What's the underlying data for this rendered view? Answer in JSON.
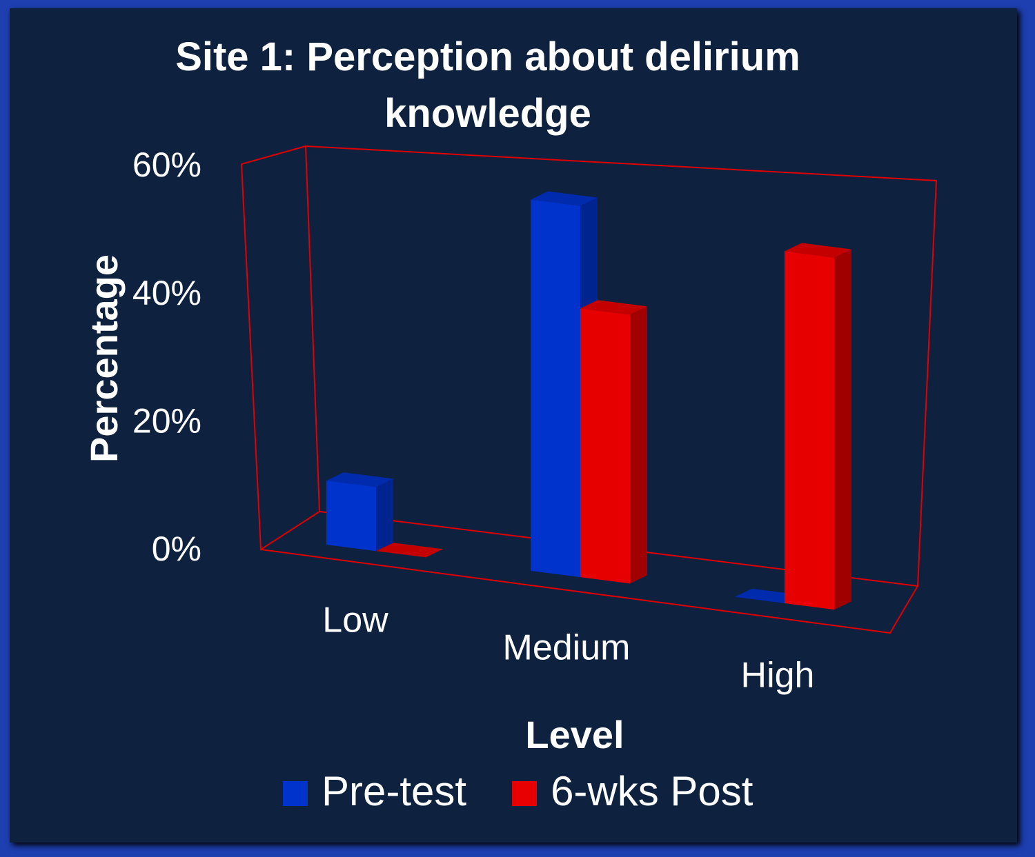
{
  "chart_data": {
    "type": "bar3d",
    "title": "Site 1: Perception about delirium knowledge",
    "xlabel": "Level",
    "ylabel": "Percentage",
    "categories": [
      "Low",
      "Medium",
      "High"
    ],
    "series": [
      {
        "name": "Pre-test",
        "color": "#0033cc",
        "values": [
          10,
          58,
          0
        ]
      },
      {
        "name": "6-wks Post",
        "color": "#e60000",
        "values": [
          0,
          42,
          55
        ]
      }
    ],
    "ylim": [
      0,
      60
    ],
    "yticks": [
      {
        "value": 0,
        "label": "0%"
      },
      {
        "value": 20,
        "label": "20%"
      },
      {
        "value": 40,
        "label": "40%"
      },
      {
        "value": 60,
        "label": "60%"
      }
    ],
    "legend": "bottom"
  }
}
